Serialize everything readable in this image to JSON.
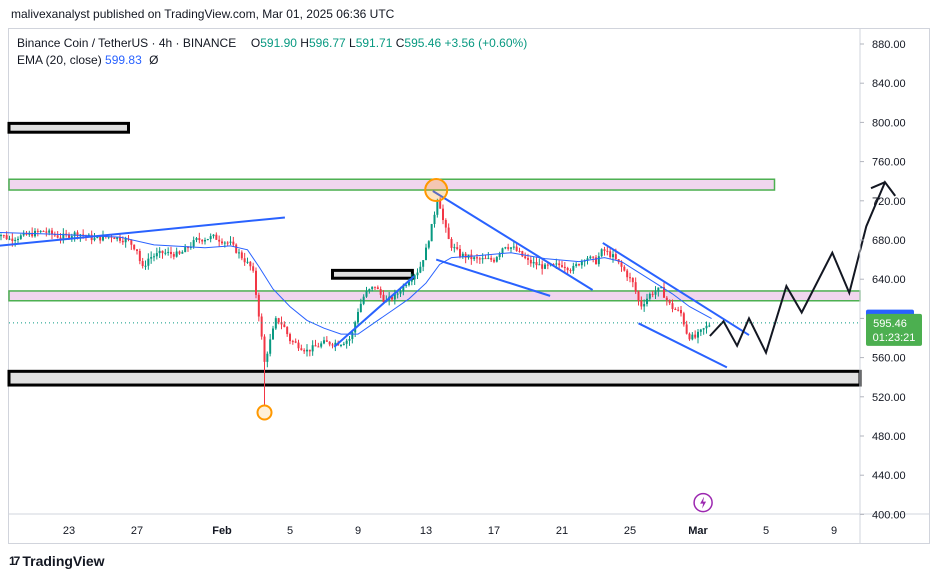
{
  "publisher": "malivexanalyst published on TradingView.com, Mar 01, 2025 06:36 UTC",
  "legend": {
    "symbol": "Binance Coin / TetherUS · 4h · BINANCE",
    "open_key": "O",
    "open": "591.90",
    "high_key": "H",
    "high": "596.77",
    "low_key": "L",
    "low": "591.71",
    "close_key": "C",
    "close": "595.46",
    "change": "+3.56 (+0.60%)",
    "ema_label": "EMA (20, close)",
    "ema_value": "599.83",
    "ema_off": "Ø"
  },
  "logo": {
    "mark": "17",
    "text": "TradingView"
  },
  "colors": {
    "up": "#089981",
    "down": "#f23645",
    "ema": "#2962ff",
    "zone_fill": "#f0d6ee",
    "zone_border": "#4caf50",
    "trend": "#2962ff",
    "projection": "#131722",
    "ema_badge": "#2962ff",
    "price_badge": "#4caf50",
    "circle": "#ff9800",
    "flash": "#9c27b0"
  },
  "icons": {
    "flash": "lightning-bolt-icon"
  },
  "chart_data": {
    "type": "candlestick",
    "symbol": "BNBUSDT",
    "timeframe": "4h",
    "y_ticks": [
      880,
      840,
      800,
      760,
      720,
      680,
      640,
      600,
      560,
      520,
      480,
      440,
      400
    ],
    "y_tick_labels": [
      "880.00",
      "840.00",
      "800.00",
      "760.00",
      "720.00",
      "680.00",
      "640.00",
      "600.00",
      "560.00",
      "520.00",
      "480.00",
      "440.00",
      "400.00"
    ],
    "x_ticks": [
      "23",
      "27",
      "Feb",
      "5",
      "9",
      "13",
      "17",
      "21",
      "25",
      "Mar",
      "5",
      "9"
    ],
    "x_tick_days": [
      -9,
      -5,
      0,
      4,
      8,
      12,
      16,
      20,
      24,
      28,
      32,
      36
    ],
    "ylim": [
      395,
      895
    ],
    "price_path": [
      [
        -13.5,
        690
      ],
      [
        -12.5,
        681
      ],
      [
        -11.5,
        685
      ],
      [
        -10.5,
        689
      ],
      [
        -9.5,
        683
      ],
      [
        -8.5,
        687
      ],
      [
        -7.5,
        681
      ],
      [
        -6.5,
        684
      ],
      [
        -5.5,
        679
      ],
      [
        -5.0,
        670
      ],
      [
        -4.7,
        650
      ],
      [
        -4.3,
        662
      ],
      [
        -3.5,
        667
      ],
      [
        -2.5,
        665
      ],
      [
        -1.5,
        680
      ],
      [
        -0.5,
        683
      ],
      [
        0.5,
        676
      ],
      [
        1.2,
        662
      ],
      [
        1.8,
        650
      ],
      [
        2.2,
        600
      ],
      [
        2.5,
        555
      ],
      [
        2.8,
        575
      ],
      [
        3.2,
        600
      ],
      [
        3.6,
        593
      ],
      [
        4.0,
        578
      ],
      [
        5.0,
        567
      ],
      [
        6.0,
        575
      ],
      [
        7.0,
        575
      ],
      [
        7.6,
        580
      ],
      [
        8.0,
        608
      ],
      [
        8.4,
        625
      ],
      [
        9.0,
        633
      ],
      [
        9.6,
        617
      ],
      [
        10.2,
        623
      ],
      [
        11.0,
        640
      ],
      [
        11.6,
        650
      ],
      [
        12.0,
        670
      ],
      [
        12.4,
        698
      ],
      [
        12.7,
        726
      ],
      [
        13.0,
        700
      ],
      [
        13.4,
        676
      ],
      [
        14.0,
        665
      ],
      [
        15.0,
        660
      ],
      [
        16.0,
        660
      ],
      [
        16.6,
        675
      ],
      [
        17.2,
        671
      ],
      [
        18.0,
        658
      ],
      [
        19.0,
        652
      ],
      [
        20.0,
        655
      ],
      [
        20.6,
        650
      ],
      [
        21.4,
        663
      ],
      [
        22.0,
        658
      ],
      [
        22.4,
        670
      ],
      [
        23.0,
        663
      ],
      [
        23.6,
        650
      ],
      [
        24.2,
        635
      ],
      [
        24.6,
        612
      ],
      [
        25.2,
        625
      ],
      [
        25.8,
        630
      ],
      [
        26.4,
        612
      ],
      [
        27.0,
        605
      ],
      [
        27.4,
        582
      ],
      [
        27.8,
        580
      ],
      [
        28.4,
        590
      ],
      [
        28.8,
        595.46
      ]
    ],
    "ema_path": [
      [
        -13.5,
        688
      ],
      [
        -10,
        686
      ],
      [
        -6,
        683
      ],
      [
        -4,
        675
      ],
      [
        -1,
        672
      ],
      [
        0.5,
        674
      ],
      [
        1.5,
        670
      ],
      [
        2.2,
        652
      ],
      [
        3.0,
        630
      ],
      [
        4.0,
        612
      ],
      [
        5.0,
        598
      ],
      [
        6.0,
        590
      ],
      [
        7.0,
        584
      ],
      [
        8.0,
        584
      ],
      [
        9.0,
        596
      ],
      [
        10.0,
        608
      ],
      [
        11.0,
        620
      ],
      [
        12.0,
        636
      ],
      [
        12.8,
        655
      ],
      [
        13.5,
        662
      ],
      [
        15.0,
        664
      ],
      [
        17.0,
        667
      ],
      [
        19.0,
        661
      ],
      [
        21.0,
        658
      ],
      [
        22.5,
        662
      ],
      [
        23.5,
        658
      ],
      [
        24.5,
        647
      ],
      [
        25.5,
        636
      ],
      [
        26.5,
        625
      ],
      [
        27.5,
        612
      ],
      [
        28.8,
        599.83
      ]
    ],
    "zones": [
      {
        "name": "top-resistance-zone",
        "x": [
          -13.5,
          32.5
        ],
        "y": [
          731,
          742
        ],
        "style": "pink"
      },
      {
        "name": "mid-zone",
        "x": [
          -13.5,
          39.5
        ],
        "y": [
          618,
          628
        ],
        "style": "pink"
      },
      {
        "name": "upper-left-box",
        "x": [
          -13.5,
          -5.5
        ],
        "y": [
          790,
          799
        ],
        "style": "black"
      },
      {
        "name": "small-box",
        "x": [
          6.5,
          11.2
        ],
        "y": [
          641,
          649
        ],
        "style": "black"
      },
      {
        "name": "support-zone",
        "x": [
          -13.5,
          39.5
        ],
        "y": [
          532,
          546
        ],
        "style": "black"
      }
    ],
    "trendlines": [
      [
        [
          -13.2,
          674
        ],
        [
          3.7,
          703
        ]
      ],
      [
        [
          6.6,
          571
        ],
        [
          11.3,
          643
        ]
      ],
      [
        [
          12.4,
          730
        ],
        [
          21.8,
          629
        ]
      ],
      [
        [
          12.6,
          660
        ],
        [
          19.3,
          623
        ]
      ],
      [
        [
          22.4,
          677
        ],
        [
          31.0,
          583
        ]
      ],
      [
        [
          24.5,
          595
        ],
        [
          29.7,
          550
        ]
      ]
    ],
    "projection": [
      [
        28.7,
        582
      ],
      [
        29.5,
        597
      ],
      [
        30.3,
        572
      ],
      [
        31.0,
        600
      ],
      [
        32.0,
        565
      ],
      [
        33.2,
        633
      ],
      [
        34.1,
        606
      ],
      [
        35.9,
        667
      ],
      [
        36.9,
        626
      ],
      [
        37.9,
        694
      ],
      [
        39.0,
        739
      ],
      [
        39.6,
        725
      ]
    ],
    "circles": [
      {
        "x": 12.6,
        "y": 731
      },
      {
        "x": 2.5,
        "y": 504
      }
    ],
    "flash_marker": {
      "x": 28.3,
      "y": 412
    },
    "ema_badge": "599.83",
    "price_badge": "595.46",
    "countdown": "01:23:21"
  }
}
